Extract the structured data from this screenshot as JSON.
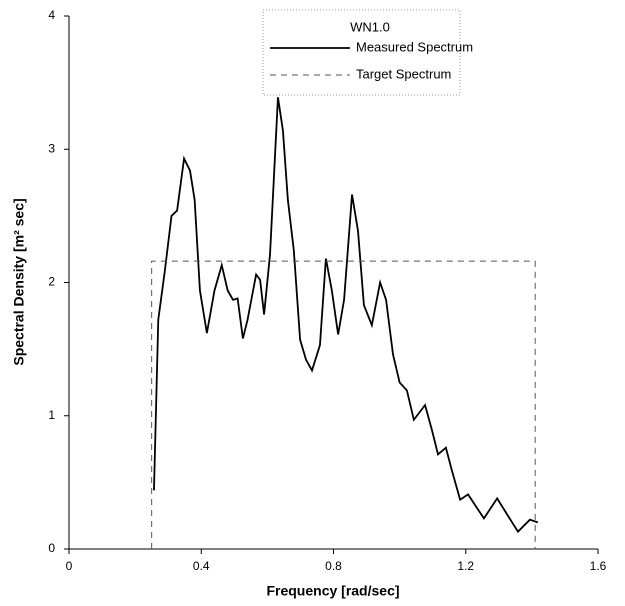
{
  "chart_data": {
    "type": "line",
    "xlabel": "Frequency [rad/sec]",
    "ylabel": "Spectral Density [m² sec]",
    "legend_title": "WN1.0",
    "legend": "top",
    "xlim": [
      0,
      1.6
    ],
    "xticks": [
      0,
      0.4,
      0.8,
      1.2,
      1.6
    ],
    "ylim": [
      0,
      4
    ],
    "yticks": [
      0,
      1,
      2,
      3,
      4
    ],
    "grid": false,
    "series": [
      {
        "name": "Measured Spectrum",
        "color": "#000000",
        "line_style": "solid",
        "x": [
          0.257,
          0.27,
          0.29,
          0.31,
          0.327,
          0.348,
          0.366,
          0.38,
          0.396,
          0.417,
          0.44,
          0.462,
          0.48,
          0.496,
          0.51,
          0.526,
          0.54,
          0.566,
          0.578,
          0.59,
          0.608,
          0.632,
          0.647,
          0.662,
          0.68,
          0.699,
          0.717,
          0.735,
          0.759,
          0.777,
          0.795,
          0.814,
          0.832,
          0.856,
          0.874,
          0.892,
          0.916,
          0.941,
          0.959,
          0.98,
          1.0,
          1.022,
          1.043,
          1.077,
          1.098,
          1.116,
          1.14,
          1.158,
          1.183,
          1.207,
          1.228,
          1.255,
          1.295,
          1.325,
          1.358,
          1.394,
          1.418
        ],
        "values": [
          0.44,
          1.72,
          2.09,
          2.5,
          2.54,
          2.93,
          2.84,
          2.62,
          1.94,
          1.62,
          1.94,
          2.13,
          1.94,
          1.87,
          1.88,
          1.58,
          1.72,
          2.06,
          2.02,
          1.76,
          2.21,
          3.39,
          3.14,
          2.62,
          2.24,
          1.57,
          1.42,
          1.34,
          1.53,
          2.18,
          1.94,
          1.61,
          1.87,
          2.66,
          2.39,
          1.83,
          1.68,
          2.0,
          1.87,
          1.46,
          1.25,
          1.19,
          0.97,
          1.08,
          0.89,
          0.71,
          0.76,
          0.59,
          0.37,
          0.41,
          0.33,
          0.23,
          0.38,
          0.26,
          0.13,
          0.22,
          0.2
        ]
      },
      {
        "name": "Target Spectrum",
        "color": "#555555",
        "line_style": "dashed",
        "x": [
          0.25,
          0.25,
          1.41,
          1.41
        ],
        "values": [
          0,
          2.16,
          2.16,
          0
        ]
      }
    ]
  }
}
